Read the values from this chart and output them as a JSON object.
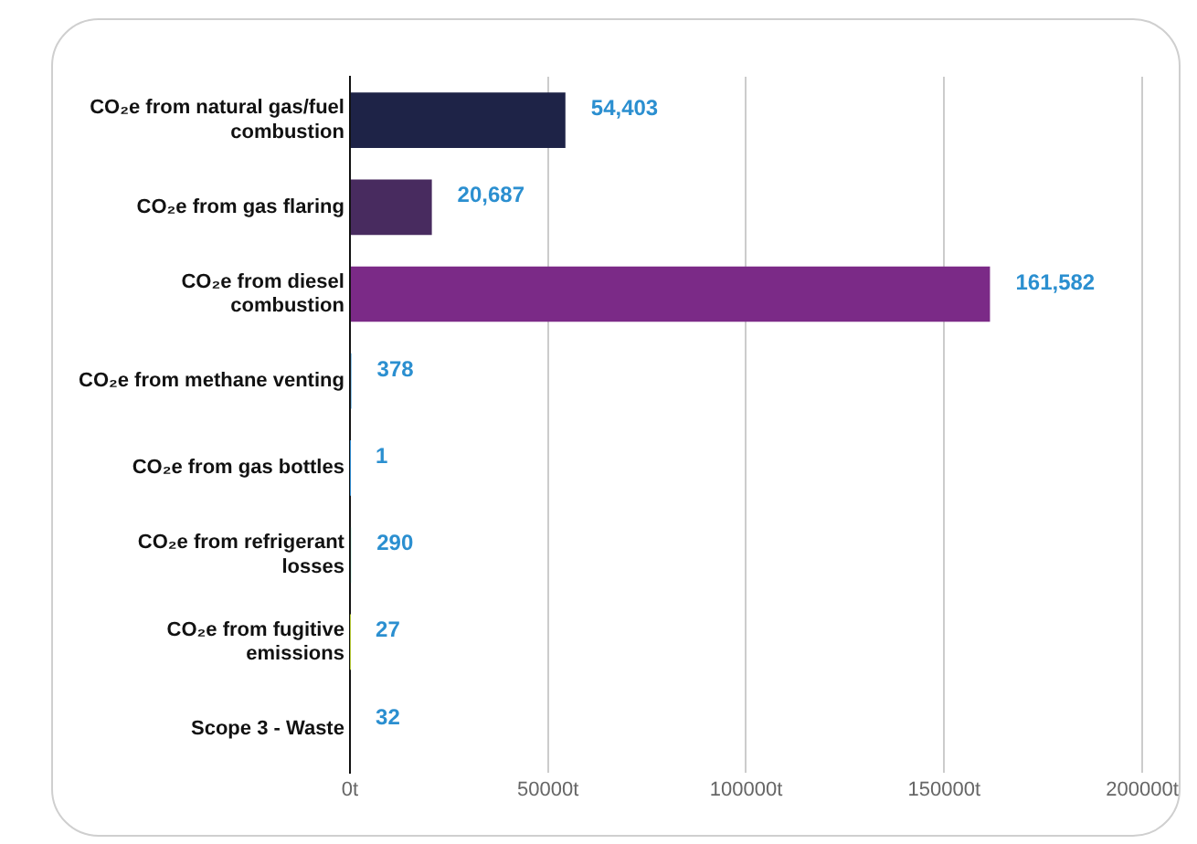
{
  "chart_data": {
    "type": "bar",
    "orientation": "horizontal",
    "categories": [
      "CO₂e from natural gas/fuel combustion",
      "CO₂e from gas flaring",
      "CO₂e from diesel combustion",
      "CO₂e from methane venting",
      "CO₂e from gas bottles",
      "CO₂e from refrigerant losses",
      "CO₂e from fugitive emissions",
      "Scope 3 - Waste"
    ],
    "values": [
      54403,
      20687,
      161582,
      378,
      1,
      290,
      27,
      32
    ],
    "colors": [
      "#1e2347",
      "#482b5f",
      "#7b2a87",
      "#3d9ad8",
      "#2f8fd6",
      "#4fc3a1",
      "#c8dc3a",
      "#111111"
    ],
    "value_labels": [
      "54,403",
      "20,687",
      "161,582",
      "378",
      "1",
      "290",
      "27",
      "32"
    ],
    "xlim": [
      0,
      200000
    ],
    "xticks": [
      {
        "value": 0,
        "label": "0t"
      },
      {
        "value": 50000,
        "label": "50000t"
      },
      {
        "value": 100000,
        "label": "100000t"
      },
      {
        "value": 150000,
        "label": "150000t"
      },
      {
        "value": 200000,
        "label": "200000t"
      }
    ],
    "grid": "x",
    "legend": false
  }
}
